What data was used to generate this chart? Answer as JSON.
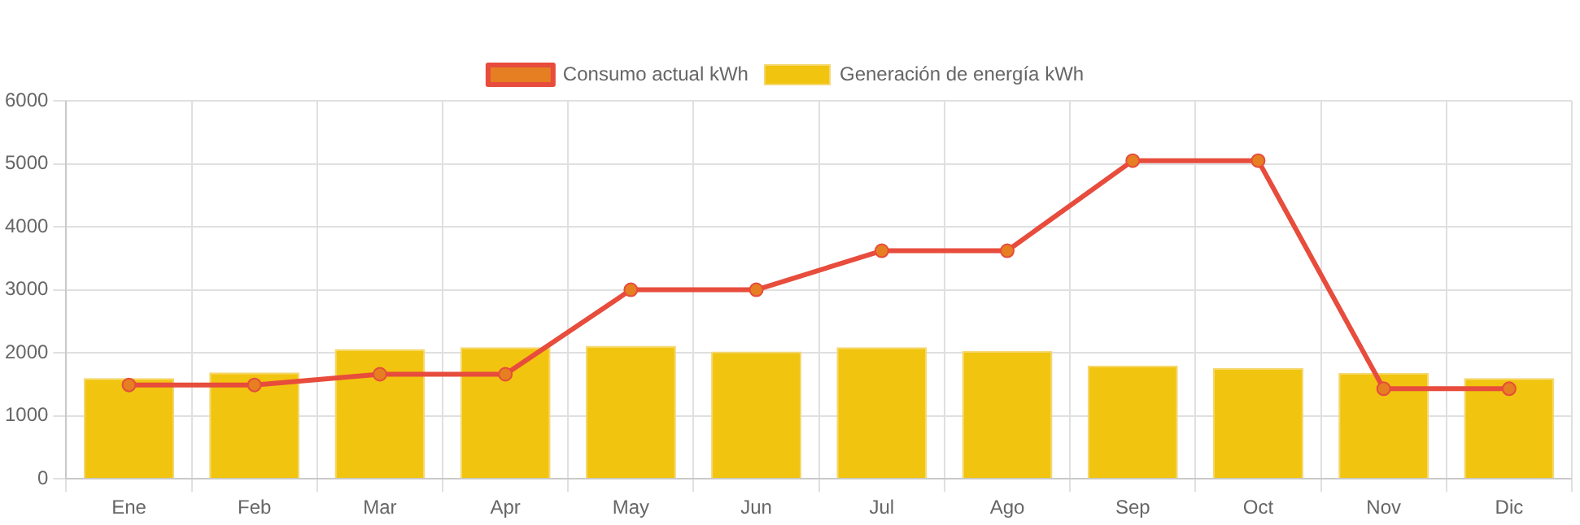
{
  "chart_data": {
    "type": "bar",
    "categories": [
      "Ene",
      "Feb",
      "Mar",
      "Apr",
      "May",
      "Jun",
      "Jul",
      "Ago",
      "Sep",
      "Oct",
      "Nov",
      "Dic"
    ],
    "series": [
      {
        "name": "Consumo actual kWh",
        "type": "line",
        "color": "#e74c3c",
        "values": [
          1490,
          1490,
          1660,
          1660,
          3000,
          3000,
          3620,
          3620,
          5050,
          5050,
          1430,
          1430
        ]
      },
      {
        "name": "Generación de energía kWh",
        "color": "#f1c40f",
        "values": [
          1600,
          1690,
          2060,
          2090,
          2110,
          2020,
          2090,
          2030,
          1800,
          1760,
          1680,
          1600
        ]
      }
    ],
    "ylim": [
      0,
      6000
    ],
    "yticks": [
      0,
      1000,
      2000,
      3000,
      4000,
      5000,
      6000
    ],
    "grid": true,
    "legend": "top",
    "marker": "circle"
  }
}
